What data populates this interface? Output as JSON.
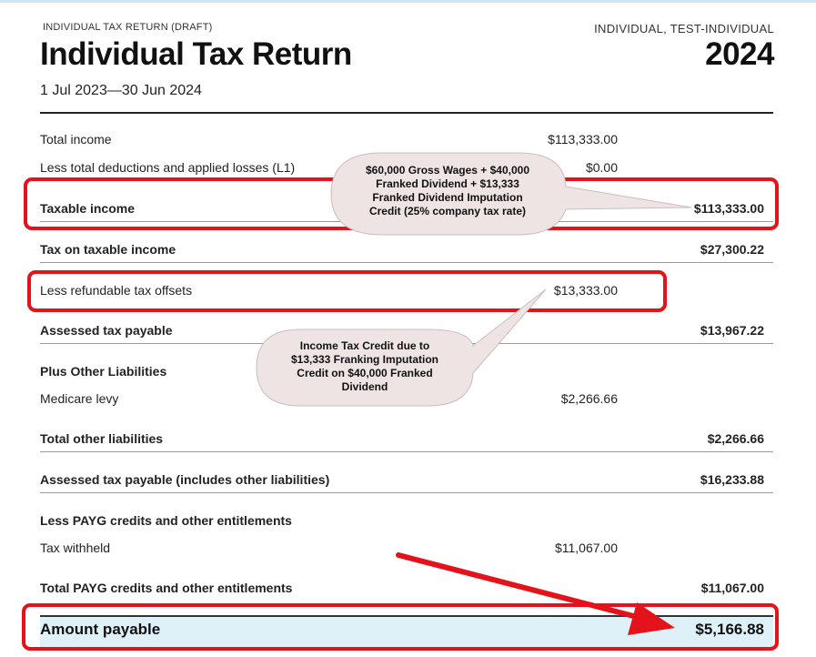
{
  "header": {
    "draft_label": "INDIVIDUAL TAX RETURN (DRAFT)",
    "taxpayer": "INDIVIDUAL, TEST-INDIVIDUAL",
    "title": "Individual Tax Return",
    "year": "2024",
    "period": "1 Jul 2023—30 Jun 2024"
  },
  "rows": {
    "total_income": {
      "label": "Total income",
      "mid": "$113,333.00"
    },
    "deductions": {
      "label": "Less total deductions and applied losses (L1)",
      "mid": "$0.00"
    },
    "taxable_income": {
      "label": "Taxable income",
      "right": "$113,333.00"
    },
    "tax_on_taxable": {
      "label": "Tax on taxable income",
      "right": "$27,300.22"
    },
    "refundable_offsets": {
      "label": "Less refundable tax offsets",
      "mid": "$13,333.00"
    },
    "assessed_tax": {
      "label": "Assessed tax payable",
      "right": "$13,967.22"
    },
    "other_liabilities": {
      "label": "Plus Other Liabilities"
    },
    "medicare": {
      "label": "Medicare levy",
      "mid": "$2,266.66"
    },
    "total_other": {
      "label": "Total other liabilities",
      "right": "$2,266.66"
    },
    "assessed_incl": {
      "label": "Assessed tax payable (includes other liabilities)",
      "right": "$16,233.88"
    },
    "payg_header": {
      "label": "Less PAYG credits and other entitlements"
    },
    "tax_withheld": {
      "label": "Tax withheld",
      "mid": "$11,067.00"
    },
    "total_payg": {
      "label": "Total PAYG credits and other entitlements",
      "right": "$11,067.00"
    },
    "amount_payable": {
      "label": "Amount payable",
      "right": "$5,166.88"
    }
  },
  "annotations": {
    "top_bubble": [
      "$60,000 Gross Wages + $40,000",
      "Franked Dividend + $13,333",
      "Franked Dividend Imputation",
      "Credit (25% company tax rate)"
    ],
    "mid_bubble": [
      "Income Tax Credit due to",
      "$13,333 Franking Imputation",
      "Credit on $40,000 Franked",
      "Dividend"
    ]
  },
  "colors": {
    "highlight_red": "#e4121b",
    "bubble_fill": "#efe4e4",
    "final_row_bg": "#dff1f8"
  }
}
